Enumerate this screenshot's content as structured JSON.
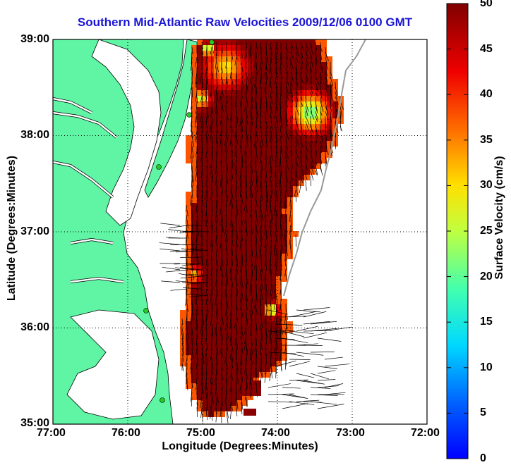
{
  "title": "Southern Mid-Atlantic Raw Velocities 2009/12/06 0100 GMT",
  "x_axis": {
    "label": "Longitude (Degrees:Minutes)",
    "ticks": [
      "77:00",
      "76:00",
      "75:00",
      "74:00",
      "73:00",
      "72:00"
    ],
    "range": [
      -77,
      -72
    ]
  },
  "y_axis": {
    "label": "Latitude (Degrees:Minutes)",
    "ticks": [
      "39:00",
      "38:00",
      "37:00",
      "36:00",
      "35:00"
    ],
    "range": [
      35,
      39
    ]
  },
  "colorbar": {
    "label": "Surface Velocity (cm/s)",
    "ticks": [
      "50",
      "45",
      "40",
      "35",
      "30",
      "25",
      "20",
      "15",
      "10",
      "5",
      "0"
    ],
    "range": [
      0,
      50
    ],
    "colormap": "jet"
  },
  "colors": {
    "land": "#5ff5a5",
    "water": "#ffffff",
    "title": "#1a14d6",
    "field_dominant": "#8b0000",
    "station_marker": "#22cc22",
    "grid": "#000000"
  },
  "map": {
    "grid": "dotted",
    "field": "gridded surface current speed with velocity vectors",
    "field_range_cm_s": [
      0,
      50
    ]
  }
}
